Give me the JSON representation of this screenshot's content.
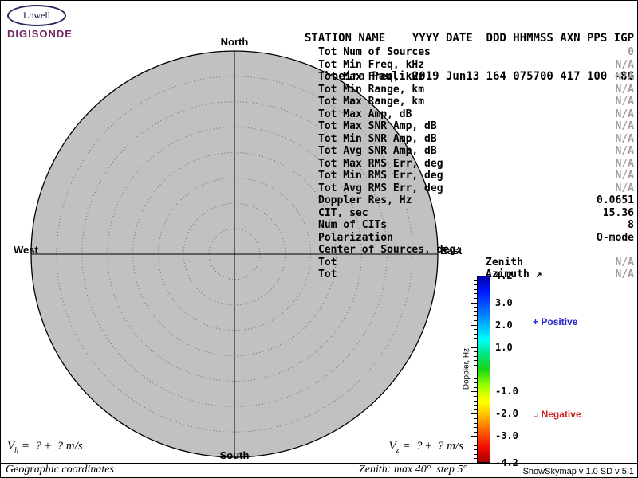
{
  "logo": {
    "oval_text": "Lowell",
    "brand": "DIGISONDE"
  },
  "header": {
    "line1": "STATION NAME    YYYY DATE  DDD HHMMSS AXN PPS IGP",
    "line2": "Cachoeira Pauli 2019 Jun13 164 075700 417 100 -8G"
  },
  "skymap": {
    "compass": {
      "north": "North",
      "south": "South",
      "east": "East",
      "west": "West"
    },
    "max_zenith_deg": 40,
    "step_deg": 5,
    "fill_color": "#c1c1c1"
  },
  "stats": [
    {
      "label": "Tot Num of Sources",
      "value": "0",
      "muted": true
    },
    {
      "label": "Tot Min Freq, kHz",
      "value": "N/A",
      "muted": true
    },
    {
      "label": "Tot Max Freq, kHz",
      "value": "N/A",
      "muted": true
    },
    {
      "label": "Tot Min Range, km",
      "value": "N/A",
      "muted": true
    },
    {
      "label": "Tot Max Range, km",
      "value": "N/A",
      "muted": true
    },
    {
      "label": "Tot Max Amp, dB",
      "value": "N/A",
      "muted": true
    },
    {
      "label": "Tot Max SNR Amp, dB",
      "value": "N/A",
      "muted": true
    },
    {
      "label": "Tot Min SNR Amp, dB",
      "value": "N/A",
      "muted": true
    },
    {
      "label": "Tot Avg SNR Amp, dB",
      "value": "N/A",
      "muted": true
    },
    {
      "label": "Tot Max RMS Err, deg",
      "value": "N/A",
      "muted": true
    },
    {
      "label": "Tot Min RMS Err, deg",
      "value": "N/A",
      "muted": true
    },
    {
      "label": "Tot Avg RMS Err, deg",
      "value": "N/A",
      "muted": true
    },
    {
      "label": "Doppler Res, Hz",
      "value": "0.0651",
      "muted": false
    },
    {
      "label": "CIT, sec",
      "value": "15.36",
      "muted": false
    },
    {
      "label": "Num of CITs",
      "value": "8",
      "muted": false
    },
    {
      "label": "Polarization",
      "value": "O-mode",
      "muted": false
    },
    {
      "label": "Center of Sources, deg:",
      "value": "",
      "muted": false
    },
    {
      "label": "Tot",
      "mid": "Zenith",
      "value": "N/A",
      "muted": true
    },
    {
      "label": "Tot",
      "mid": "Azimuth ↗",
      "value": "N/A",
      "muted": true
    }
  ],
  "colorbar": {
    "title": "Doppler, Hz",
    "max": 4.2,
    "min": -4.2,
    "minor_step": 0.2,
    "tick_labels": [
      "4.2",
      "3.0",
      "2.0",
      "1.0",
      "-1.0",
      "-2.0",
      "-3.0",
      "-4.2"
    ],
    "gradient_stops": [
      "#0000a8 0%",
      "#0018ff 8%",
      "#008cff 22%",
      "#00ffff 34%",
      "#00e57f 42%",
      "#17d417 50%",
      "#8cff00 58%",
      "#e5ff00 64%",
      "#ffff00 68%",
      "#ffb200 76%",
      "#ff5900 84%",
      "#f20c00 92%",
      "#a80000 100%"
    ]
  },
  "legend": {
    "positive": {
      "symbol": "+",
      "label": "Positive",
      "color": "#2222cc"
    },
    "negative": {
      "symbol": "○",
      "label": "Negative",
      "color": "#cc2020"
    }
  },
  "footer": {
    "vh": {
      "symbol": "V",
      "sub": "h",
      "rest": " =  ? ±  ? m/s"
    },
    "vz": {
      "symbol": "V",
      "sub": "z",
      "rest": " =  ? ±  ? m/s"
    },
    "coords": "Geographic coordinates",
    "zenith_note": "Zenith: max 40°  step 5°",
    "version": "ShowSkymap v 1.0   SD v 5.1"
  }
}
